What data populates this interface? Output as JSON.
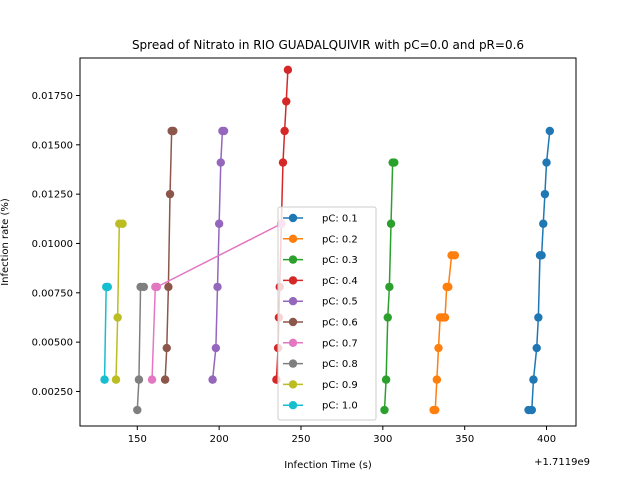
{
  "chart_data": {
    "type": "line",
    "title": "Spread of Nitrato in RIO GUADALQUIVIR with pC=0.0 and pR=0.6",
    "xlabel": "Infection Time (s)",
    "ylabel": "Infection rate (%)",
    "x_offset_label": "+1.7119e9",
    "xlim": [
      115,
      418
    ],
    "ylim": [
      0.00075,
      0.0194
    ],
    "xticks": [
      150,
      200,
      250,
      300,
      350,
      400
    ],
    "xtick_labels": [
      "150",
      "200",
      "250",
      "300",
      "350",
      "400"
    ],
    "yticks": [
      0.0025,
      0.005,
      0.0075,
      0.01,
      0.0125,
      0.015,
      0.0175
    ],
    "ytick_labels": [
      "0.00250",
      "0.00500",
      "0.00750",
      "0.01000",
      "0.01250",
      "0.01500",
      "0.01750"
    ],
    "legend_position": "lower-center",
    "series": [
      {
        "name": "pC: 0.1",
        "color": "#1f77b4",
        "x": [
          389,
          391,
          392,
          394,
          395,
          396,
          397,
          398,
          399,
          400,
          402
        ],
        "y": [
          0.00156,
          0.00156,
          0.0031,
          0.0047,
          0.00625,
          0.0094,
          0.0094,
          0.011,
          0.0125,
          0.0141,
          0.0157
        ]
      },
      {
        "name": "pC: 0.2",
        "color": "#ff7f0e",
        "x": [
          331,
          332,
          333,
          334,
          335,
          336,
          337,
          338,
          339,
          340,
          342,
          344
        ],
        "y": [
          0.00156,
          0.00156,
          0.0031,
          0.0047,
          0.00625,
          0.00625,
          0.00625,
          0.00625,
          0.0078,
          0.0078,
          0.0094,
          0.0094
        ]
      },
      {
        "name": "pC: 0.3",
        "color": "#2ca02c",
        "x": [
          301,
          302,
          303,
          304,
          305,
          306,
          307
        ],
        "y": [
          0.00156,
          0.0031,
          0.00625,
          0.0078,
          0.011,
          0.0141,
          0.0141
        ]
      },
      {
        "name": "pC: 0.4",
        "color": "#d62728",
        "x": [
          235,
          236,
          236.5,
          237,
          238,
          239,
          240,
          241,
          242
        ],
        "y": [
          0.0031,
          0.0047,
          0.00625,
          0.0078,
          0.011,
          0.0141,
          0.0157,
          0.0172,
          0.0188
        ]
      },
      {
        "name": "pC: 0.5",
        "color": "#9467bd",
        "x": [
          196,
          198,
          199,
          200,
          201,
          202,
          203
        ],
        "y": [
          0.0031,
          0.0047,
          0.0078,
          0.011,
          0.0141,
          0.0157,
          0.0157
        ]
      },
      {
        "name": "pC: 0.6",
        "color": "#8c564b",
        "x": [
          167,
          168,
          169,
          170,
          171,
          172
        ],
        "y": [
          0.0031,
          0.0047,
          0.0078,
          0.0125,
          0.0157,
          0.0157
        ]
      },
      {
        "name": "pC: 0.7",
        "color": "#e377c2",
        "x": [
          159,
          161,
          162,
          238
        ],
        "y": [
          0.0031,
          0.0078,
          0.0078,
          0.011
        ]
      },
      {
        "name": "pC: 0.8",
        "color": "#7f7f7f",
        "x": [
          150,
          151,
          152,
          154
        ],
        "y": [
          0.00156,
          0.0031,
          0.0078,
          0.0078
        ]
      },
      {
        "name": "pC: 0.9",
        "color": "#bcbd22",
        "x": [
          137,
          138,
          139,
          141
        ],
        "y": [
          0.0031,
          0.00625,
          0.011,
          0.011
        ]
      },
      {
        "name": "pC: 1.0",
        "color": "#17becf",
        "x": [
          130,
          131,
          132
        ],
        "y": [
          0.0031,
          0.0078,
          0.0078
        ]
      }
    ]
  }
}
